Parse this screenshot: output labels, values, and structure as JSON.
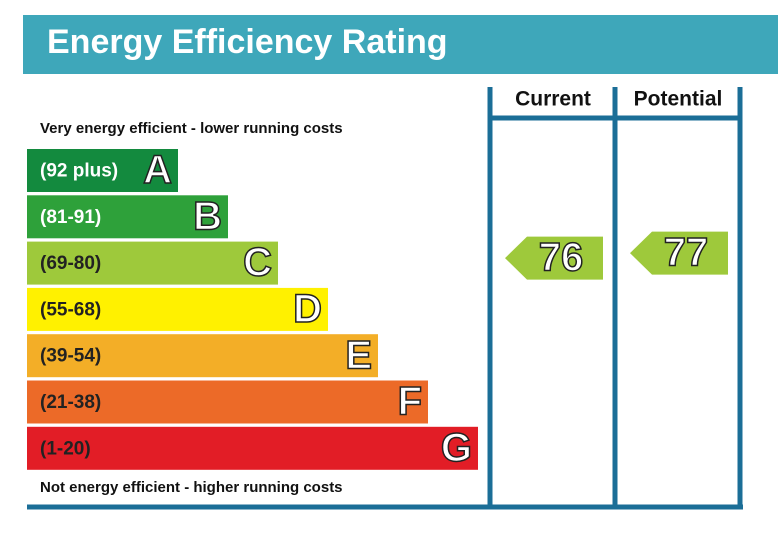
{
  "chart_data": {
    "type": "energy-rating",
    "title": "Energy Efficiency Rating",
    "top_label": "Very energy efficient - lower running costs",
    "bottom_label": "Not energy efficient - higher running costs",
    "columns": [
      "Current",
      "Potential"
    ],
    "bands": [
      {
        "range": "(92 plus)",
        "letter": "A",
        "color": "#138a3e",
        "text_color": "#ffffff"
      },
      {
        "range": "(81-91)",
        "letter": "B",
        "color": "#2ea13a",
        "text_color": "#ffffff"
      },
      {
        "range": "(69-80)",
        "letter": "C",
        "color": "#9ec93b",
        "text_color": "#222222"
      },
      {
        "range": "(55-68)",
        "letter": "D",
        "color": "#fff100",
        "text_color": "#222222"
      },
      {
        "range": "(39-54)",
        "letter": "E",
        "color": "#f3ae27",
        "text_color": "#222222"
      },
      {
        "range": "(21-38)",
        "letter": "F",
        "color": "#ec6a28",
        "text_color": "#222222"
      },
      {
        "range": "(1-20)",
        "letter": "G",
        "color": "#e21d26",
        "text_color": "#222222"
      }
    ],
    "current": 76,
    "potential": 77,
    "current_color": "#9ec93b",
    "potential_color": "#9ec93b"
  }
}
